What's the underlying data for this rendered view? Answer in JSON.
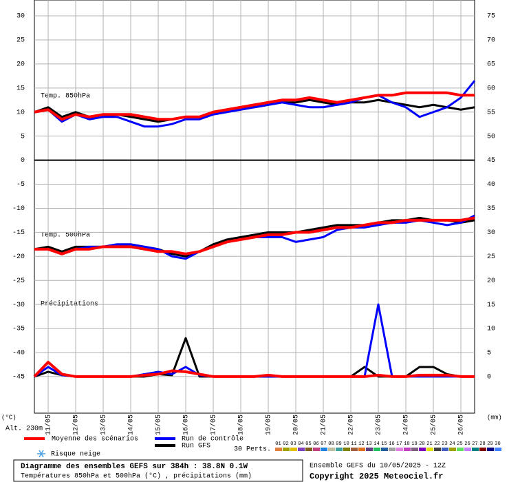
{
  "chart_data": {
    "type": "line",
    "x": [
      0,
      12,
      24,
      36,
      48,
      60,
      72,
      84,
      96,
      108,
      120,
      132,
      144,
      156,
      168,
      180,
      192,
      204,
      216,
      228,
      240,
      252,
      264,
      276,
      288,
      300,
      312,
      324,
      336,
      348,
      360,
      372,
      384
    ],
    "xlim": [
      0,
      384
    ],
    "xticks": [
      {
        "value": 12,
        "label": "11/05"
      },
      {
        "value": 36,
        "label": "12/05"
      },
      {
        "value": 60,
        "label": "13/05"
      },
      {
        "value": 84,
        "label": "14/05"
      },
      {
        "value": 108,
        "label": "15/05"
      },
      {
        "value": 132,
        "label": "16/05"
      },
      {
        "value": 156,
        "label": "17/05"
      },
      {
        "value": 180,
        "label": "18/05"
      },
      {
        "value": 204,
        "label": "19/05"
      },
      {
        "value": 228,
        "label": "20/05"
      },
      {
        "value": 252,
        "label": "21/05"
      },
      {
        "value": 276,
        "label": "22/05"
      },
      {
        "value": 300,
        "label": "23/05"
      },
      {
        "value": 324,
        "label": "24/05"
      },
      {
        "value": 348,
        "label": "25/05"
      },
      {
        "value": 372,
        "label": "26/05"
      }
    ],
    "ylim": [
      -52.6,
      33.3
    ],
    "yticks": [
      30,
      25,
      20,
      15,
      10,
      5,
      0,
      -5,
      -10,
      -15,
      -20,
      -25,
      -30,
      -35,
      -40,
      -45
    ],
    "y2lim": [
      -7.6,
      78.3
    ],
    "y2ticks": [
      75,
      70,
      65,
      60,
      55,
      50,
      45,
      40,
      35,
      30,
      25,
      20,
      15,
      10,
      5,
      0
    ],
    "grid": true,
    "ylabel": "(°C)",
    "y2label": "(mm)",
    "altitude": "Alt. 230m",
    "panels": [
      "Temp. 850hPa",
      "Temp. 500hPa",
      "Précipitations"
    ],
    "series": [
      {
        "name": "Moyenne des scénarios",
        "color": "#ff0000",
        "t850": [
          10,
          10.5,
          8.5,
          9.5,
          9,
          9.5,
          9.5,
          9.5,
          9,
          8.5,
          8.5,
          9,
          9,
          10,
          10.5,
          11,
          11.5,
          12,
          12.5,
          12.5,
          13,
          12.5,
          12,
          12.5,
          13,
          13.5,
          13.5,
          14,
          14,
          14,
          14,
          13.5,
          13.5
        ],
        "t500": [
          -18.5,
          -18.5,
          -19.5,
          -18.5,
          -18.5,
          -18,
          -18,
          -18,
          -18.5,
          -19,
          -19,
          -19.5,
          -19,
          -18,
          -17,
          -16.5,
          -16,
          -15.5,
          -15.5,
          -15,
          -15,
          -14.5,
          -14,
          -14,
          -13.5,
          -13,
          -13,
          -12.5,
          -12.5,
          -12.5,
          -12.5,
          -12.5,
          -12
        ],
        "precip": [
          0,
          3,
          0.5,
          0,
          0,
          0,
          0,
          0,
          0.3,
          0.5,
          1.2,
          1,
          0.5,
          0,
          0,
          0,
          0,
          0.3,
          0,
          0,
          0,
          0,
          0,
          0,
          0,
          0.3,
          0,
          0,
          0.3,
          0.3,
          0.3,
          0,
          0
        ]
      },
      {
        "name": "Run de contrôle",
        "color": "#0000ff",
        "t850": [
          10,
          10.5,
          8,
          9.5,
          8.5,
          9,
          9,
          8,
          7,
          7,
          7.5,
          8.5,
          8.5,
          9.5,
          10,
          10.5,
          11,
          11.5,
          12,
          11.5,
          11,
          11,
          11.5,
          12,
          13,
          13.5,
          12,
          11,
          9,
          10,
          11,
          13,
          16.5
        ],
        "t500": [
          -18.5,
          -18.5,
          -19.5,
          -18.5,
          -18,
          -18,
          -17.5,
          -17.5,
          -18,
          -18.5,
          -20,
          -20.5,
          -19,
          -18,
          -17,
          -16.5,
          -16,
          -16,
          -16,
          -17,
          -16.5,
          -16,
          -14.5,
          -14,
          -14,
          -13.5,
          -13,
          -13,
          -12.5,
          -13,
          -13.5,
          -13,
          -11.5
        ],
        "precip": [
          0,
          2,
          0.3,
          0,
          0,
          0,
          0,
          0,
          0.5,
          1,
          0.5,
          2,
          0.3,
          0,
          0,
          0,
          0,
          0,
          0,
          0,
          0,
          0,
          0,
          0,
          0,
          15,
          0,
          0,
          0,
          0,
          0,
          0,
          0
        ]
      },
      {
        "name": "Run GFS",
        "color": "#000000",
        "t850": [
          10,
          11,
          9,
          10,
          9,
          9,
          9.5,
          9,
          8.5,
          8,
          8.5,
          9,
          9,
          10,
          10.5,
          11,
          11,
          11.5,
          12,
          12,
          12.5,
          12,
          11.5,
          12,
          12,
          12.5,
          12,
          11.5,
          11,
          11.5,
          11,
          10.5,
          11
        ],
        "t500": [
          -18.5,
          -18,
          -19,
          -18,
          -18,
          -18,
          -17.5,
          -17.5,
          -18,
          -18.5,
          -19.5,
          -20,
          -19,
          -17.5,
          -16.5,
          -16,
          -15.5,
          -15,
          -15,
          -15,
          -14.5,
          -14,
          -13.5,
          -13.5,
          -13.5,
          -13,
          -12.5,
          -12.5,
          -12,
          -12.5,
          -12.5,
          -13,
          -12.5
        ],
        "precip": [
          0,
          1,
          0.3,
          0,
          0,
          0,
          0,
          0,
          0,
          0.5,
          0.3,
          8,
          0,
          0,
          0,
          0,
          0,
          0,
          0,
          0,
          0,
          0,
          0,
          0,
          2,
          0,
          0,
          0,
          2,
          2,
          0.5,
          0,
          0
        ]
      }
    ],
    "perturbations": {
      "label": "30 Perts.",
      "names": [
        "01",
        "02",
        "03",
        "04",
        "05",
        "06",
        "07",
        "08",
        "09",
        "10",
        "11",
        "12",
        "13",
        "14",
        "15",
        "16",
        "17",
        "18",
        "19",
        "20",
        "21",
        "22",
        "23",
        "24",
        "25",
        "26",
        "27",
        "28",
        "29",
        "30"
      ],
      "colors": [
        "#e08040",
        "#a0a000",
        "#e0c000",
        "#8040c0",
        "#806020",
        "#c04080",
        "#2080e0",
        "#c0c0a0",
        "#40a0a0",
        "#808000",
        "#a06040",
        "#e07020",
        "#604080",
        "#20c060",
        "#2060a0",
        "#a0a0a0",
        "#e080e0",
        "#c040c0",
        "#806080",
        "#8000c0",
        "#e0e000",
        "#404040",
        "#4060c0",
        "#a0a000",
        "#60e060",
        "#c080ff",
        "#008080",
        "#800000",
        "#000080",
        "#4080ff"
      ]
    },
    "snow_label": "Risque neige",
    "footer": {
      "title": "Diagramme des ensembles GEFS sur 384h : 38.8N 0.1W",
      "subtitle": "Températures 850hPa et 500hPa (°C) , précipitations (mm)",
      "run": "Ensemble GEFS du 10/05/2025 - 12Z",
      "copyright": "Copyright 2025 Meteociel.fr"
    }
  }
}
